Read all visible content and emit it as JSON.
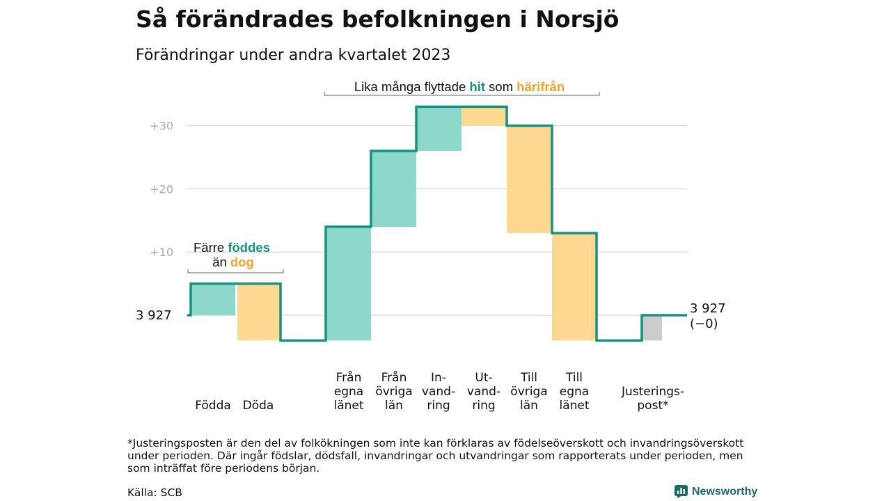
{
  "header": {
    "title": "Så förändrades befolkningen i Norsjö",
    "subtitle": "Förändringar under andra kvartalet 2023"
  },
  "chart_data": {
    "type": "waterfall",
    "ylim": [
      -4,
      33
    ],
    "yticks": [
      {
        "value": 10,
        "label": "+10"
      },
      {
        "value": 20,
        "label": "+20"
      },
      {
        "value": 30,
        "label": "+30"
      }
    ],
    "grid": true,
    "baseline_value": 0,
    "start_label": "3  927",
    "end_label_lines": [
      "3 927",
      "(−0)"
    ],
    "steps": [
      {
        "lines": [
          "Födda"
        ],
        "from": 0,
        "to": 5,
        "kind": "in"
      },
      {
        "lines": [
          "Döda"
        ],
        "from": 5,
        "to": -4,
        "kind": "out"
      },
      {
        "lines": [
          "Från",
          "egna",
          "länet"
        ],
        "from": -4,
        "to": 14,
        "kind": "in"
      },
      {
        "lines": [
          "Från",
          "övriga",
          "län"
        ],
        "from": 14,
        "to": 26,
        "kind": "in"
      },
      {
        "lines": [
          "In-",
          "vand-",
          "ring"
        ],
        "from": 26,
        "to": 33,
        "kind": "in"
      },
      {
        "lines": [
          "Ut-",
          "vand-",
          "ring"
        ],
        "from": 33,
        "to": 30,
        "kind": "out"
      },
      {
        "lines": [
          "Till",
          "övriga",
          "län"
        ],
        "from": 30,
        "to": 13,
        "kind": "out"
      },
      {
        "lines": [
          "Till",
          "egna",
          "länet"
        ],
        "from": 13,
        "to": -4,
        "kind": "out"
      },
      {
        "lines": [
          "Justerings-",
          "post*"
        ],
        "from": -4,
        "to": 0,
        "kind": "adjust"
      }
    ],
    "annotations": {
      "births": {
        "prefix": "Färre",
        "highlight1": "föddes",
        "mid": "än",
        "highlight2": "dog"
      },
      "migration": {
        "prefix": "Lika många flyttade",
        "highlight1": "hit",
        "mid": "som",
        "highlight2": "härifrån"
      }
    },
    "colors": {
      "in": "#8ed8cb",
      "out": "#fdd890",
      "adjust": "#cccccc",
      "line": "#16917f",
      "highlight_in": "#16917f",
      "highlight_out": "#f0a42a",
      "grid": "#dddddd",
      "tick": "#aaaaaa"
    }
  },
  "footer": {
    "footnote": "*Justeringsposten är den del av folkökningen som inte kan förklaras av födelseöverskott och invandringsöverskott under perioden. Där ingår födslar, dödsfall, invandringar och utvandringar som rapporterats under perioden, men som inträffat före periodens början.",
    "source": "Källa: SCB",
    "brand": "Newsworthy"
  }
}
